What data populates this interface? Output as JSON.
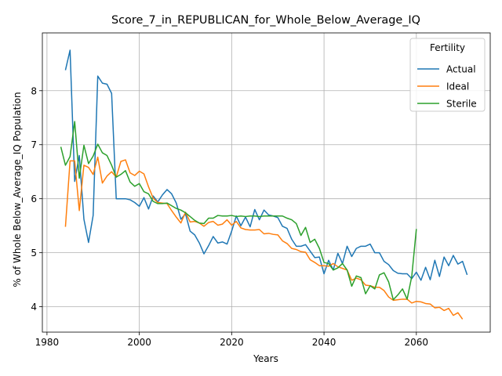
{
  "chart_data": {
    "type": "line",
    "title": "Score_7_in_REPUBLICAN_for_Whole_Below_Average_IQ",
    "xlabel": "Years",
    "ylabel": "% of Whole Below_Average_IQ Population",
    "xlim": [
      1979,
      2076
    ],
    "ylim": [
      3.53,
      9.07
    ],
    "xticks": [
      1980,
      2000,
      2020,
      2040,
      2060
    ],
    "yticks": [
      4,
      5,
      6,
      7,
      8
    ],
    "grid": true,
    "legend": {
      "title": "Fertility",
      "placement": "top-right"
    },
    "series": [
      {
        "name": "Actual",
        "color": "#1f77b4",
        "points": [
          [
            1984,
            8.38
          ],
          [
            1985,
            8.75
          ],
          [
            1986,
            6.32
          ],
          [
            1987,
            6.8
          ],
          [
            1988,
            5.62
          ],
          [
            1989,
            5.19
          ],
          [
            1990,
            5.69
          ],
          [
            1991,
            8.27
          ],
          [
            1992,
            8.14
          ],
          [
            1993,
            8.12
          ],
          [
            1994,
            7.95
          ],
          [
            1995,
            6.0
          ],
          [
            1996,
            6.0
          ],
          [
            1997,
            6.0
          ],
          [
            1998,
            5.98
          ],
          [
            1999,
            5.93
          ],
          [
            2000,
            5.86
          ],
          [
            2001,
            6.02
          ],
          [
            2002,
            5.81
          ],
          [
            2003,
            6.05
          ],
          [
            2004,
            5.94
          ],
          [
            2005,
            6.07
          ],
          [
            2006,
            6.17
          ],
          [
            2007,
            6.09
          ],
          [
            2008,
            5.92
          ],
          [
            2009,
            5.62
          ],
          [
            2010,
            5.72
          ],
          [
            2011,
            5.4
          ],
          [
            2012,
            5.33
          ],
          [
            2013,
            5.18
          ],
          [
            2014,
            4.98
          ],
          [
            2015,
            5.13
          ],
          [
            2016,
            5.3
          ],
          [
            2017,
            5.18
          ],
          [
            2018,
            5.2
          ],
          [
            2019,
            5.16
          ],
          [
            2020,
            5.4
          ],
          [
            2021,
            5.68
          ],
          [
            2022,
            5.5
          ],
          [
            2023,
            5.66
          ],
          [
            2024,
            5.48
          ],
          [
            2025,
            5.8
          ],
          [
            2026,
            5.61
          ],
          [
            2027,
            5.79
          ],
          [
            2028,
            5.7
          ],
          [
            2029,
            5.68
          ],
          [
            2030,
            5.65
          ],
          [
            2031,
            5.49
          ],
          [
            2032,
            5.45
          ],
          [
            2033,
            5.25
          ],
          [
            2034,
            5.12
          ],
          [
            2035,
            5.12
          ],
          [
            2036,
            5.15
          ],
          [
            2037,
            5.03
          ],
          [
            2038,
            4.91
          ],
          [
            2039,
            4.92
          ],
          [
            2040,
            4.61
          ],
          [
            2041,
            4.86
          ],
          [
            2042,
            4.68
          ],
          [
            2043,
            4.99
          ],
          [
            2044,
            4.8
          ],
          [
            2045,
            5.12
          ],
          [
            2046,
            4.93
          ],
          [
            2047,
            5.08
          ],
          [
            2048,
            5.12
          ],
          [
            2049,
            5.12
          ],
          [
            2050,
            5.16
          ],
          [
            2051,
            5.0
          ],
          [
            2052,
            5.0
          ],
          [
            2053,
            4.84
          ],
          [
            2054,
            4.78
          ],
          [
            2055,
            4.67
          ],
          [
            2056,
            4.62
          ],
          [
            2057,
            4.61
          ],
          [
            2058,
            4.61
          ],
          [
            2059,
            4.52
          ],
          [
            2060,
            4.64
          ],
          [
            2061,
            4.49
          ],
          [
            2062,
            4.73
          ],
          [
            2063,
            4.5
          ],
          [
            2064,
            4.86
          ],
          [
            2065,
            4.56
          ],
          [
            2066,
            4.92
          ],
          [
            2067,
            4.76
          ],
          [
            2068,
            4.95
          ],
          [
            2069,
            4.79
          ],
          [
            2070,
            4.84
          ],
          [
            2071,
            4.59
          ]
        ]
      },
      {
        "name": "Ideal",
        "color": "#ff7f0e",
        "points": [
          [
            1984,
            5.48
          ],
          [
            1985,
            6.7
          ],
          [
            1986,
            6.7
          ],
          [
            1987,
            5.78
          ],
          [
            1988,
            6.62
          ],
          [
            1989,
            6.58
          ],
          [
            1990,
            6.45
          ],
          [
            1991,
            6.77
          ],
          [
            1992,
            6.29
          ],
          [
            1993,
            6.42
          ],
          [
            1994,
            6.5
          ],
          [
            1995,
            6.4
          ],
          [
            1996,
            6.69
          ],
          [
            1997,
            6.72
          ],
          [
            1998,
            6.48
          ],
          [
            1999,
            6.43
          ],
          [
            2000,
            6.51
          ],
          [
            2001,
            6.46
          ],
          [
            2002,
            6.22
          ],
          [
            2003,
            6.01
          ],
          [
            2004,
            5.93
          ],
          [
            2005,
            5.92
          ],
          [
            2006,
            5.91
          ],
          [
            2007,
            5.78
          ],
          [
            2008,
            5.66
          ],
          [
            2009,
            5.55
          ],
          [
            2010,
            5.75
          ],
          [
            2011,
            5.57
          ],
          [
            2012,
            5.58
          ],
          [
            2013,
            5.55
          ],
          [
            2014,
            5.49
          ],
          [
            2015,
            5.56
          ],
          [
            2016,
            5.58
          ],
          [
            2017,
            5.51
          ],
          [
            2018,
            5.53
          ],
          [
            2019,
            5.61
          ],
          [
            2020,
            5.51
          ],
          [
            2021,
            5.58
          ],
          [
            2022,
            5.46
          ],
          [
            2023,
            5.43
          ],
          [
            2024,
            5.42
          ],
          [
            2025,
            5.42
          ],
          [
            2026,
            5.43
          ],
          [
            2027,
            5.35
          ],
          [
            2028,
            5.36
          ],
          [
            2029,
            5.34
          ],
          [
            2030,
            5.33
          ],
          [
            2031,
            5.22
          ],
          [
            2032,
            5.17
          ],
          [
            2033,
            5.08
          ],
          [
            2034,
            5.06
          ],
          [
            2035,
            5.02
          ],
          [
            2036,
            5.01
          ],
          [
            2037,
            4.87
          ],
          [
            2038,
            4.82
          ],
          [
            2039,
            4.76
          ],
          [
            2040,
            4.76
          ],
          [
            2041,
            4.75
          ],
          [
            2042,
            4.8
          ],
          [
            2043,
            4.74
          ],
          [
            2044,
            4.71
          ],
          [
            2045,
            4.68
          ],
          [
            2046,
            4.49
          ],
          [
            2047,
            4.53
          ],
          [
            2048,
            4.5
          ],
          [
            2049,
            4.4
          ],
          [
            2050,
            4.39
          ],
          [
            2051,
            4.36
          ],
          [
            2052,
            4.36
          ],
          [
            2053,
            4.3
          ],
          [
            2054,
            4.18
          ],
          [
            2055,
            4.12
          ],
          [
            2056,
            4.13
          ],
          [
            2057,
            4.14
          ],
          [
            2058,
            4.14
          ],
          [
            2059,
            4.07
          ],
          [
            2060,
            4.1
          ],
          [
            2061,
            4.09
          ],
          [
            2062,
            4.06
          ],
          [
            2063,
            4.05
          ],
          [
            2064,
            3.98
          ],
          [
            2065,
            3.99
          ],
          [
            2066,
            3.93
          ],
          [
            2067,
            3.97
          ],
          [
            2068,
            3.84
          ],
          [
            2069,
            3.89
          ],
          [
            2070,
            3.77
          ]
        ]
      },
      {
        "name": "Sterile",
        "color": "#2ca02c",
        "points": [
          [
            1983,
            6.96
          ],
          [
            1984,
            6.62
          ],
          [
            1985,
            6.78
          ],
          [
            1986,
            7.43
          ],
          [
            1987,
            6.38
          ],
          [
            1988,
            6.99
          ],
          [
            1989,
            6.65
          ],
          [
            1990,
            6.79
          ],
          [
            1991,
            7.01
          ],
          [
            1992,
            6.85
          ],
          [
            1993,
            6.8
          ],
          [
            1994,
            6.62
          ],
          [
            1995,
            6.4
          ],
          [
            1996,
            6.45
          ],
          [
            1997,
            6.52
          ],
          [
            1998,
            6.31
          ],
          [
            1999,
            6.23
          ],
          [
            2000,
            6.28
          ],
          [
            2001,
            6.13
          ],
          [
            2002,
            6.09
          ],
          [
            2003,
            5.95
          ],
          [
            2004,
            5.91
          ],
          [
            2005,
            5.91
          ],
          [
            2006,
            5.92
          ],
          [
            2007,
            5.87
          ],
          [
            2008,
            5.82
          ],
          [
            2009,
            5.79
          ],
          [
            2010,
            5.74
          ],
          [
            2011,
            5.67
          ],
          [
            2012,
            5.6
          ],
          [
            2013,
            5.55
          ],
          [
            2014,
            5.54
          ],
          [
            2015,
            5.64
          ],
          [
            2016,
            5.64
          ],
          [
            2017,
            5.69
          ],
          [
            2018,
            5.68
          ],
          [
            2019,
            5.68
          ],
          [
            2020,
            5.69
          ],
          [
            2021,
            5.67
          ],
          [
            2022,
            5.68
          ],
          [
            2023,
            5.67
          ],
          [
            2024,
            5.68
          ],
          [
            2025,
            5.68
          ],
          [
            2026,
            5.67
          ],
          [
            2027,
            5.68
          ],
          [
            2028,
            5.68
          ],
          [
            2029,
            5.68
          ],
          [
            2030,
            5.68
          ],
          [
            2031,
            5.68
          ],
          [
            2032,
            5.64
          ],
          [
            2033,
            5.61
          ],
          [
            2034,
            5.54
          ],
          [
            2035,
            5.32
          ],
          [
            2036,
            5.47
          ],
          [
            2037,
            5.19
          ],
          [
            2038,
            5.25
          ],
          [
            2039,
            5.08
          ],
          [
            2040,
            4.82
          ],
          [
            2041,
            4.8
          ],
          [
            2042,
            4.68
          ],
          [
            2043,
            4.72
          ],
          [
            2044,
            4.8
          ],
          [
            2045,
            4.68
          ],
          [
            2046,
            4.38
          ],
          [
            2047,
            4.57
          ],
          [
            2048,
            4.54
          ],
          [
            2049,
            4.24
          ],
          [
            2050,
            4.39
          ],
          [
            2051,
            4.33
          ],
          [
            2052,
            4.59
          ],
          [
            2053,
            4.63
          ],
          [
            2054,
            4.46
          ],
          [
            2055,
            4.13
          ],
          [
            2056,
            4.22
          ],
          [
            2057,
            4.33
          ],
          [
            2058,
            4.14
          ],
          [
            2059,
            4.56
          ],
          [
            2060,
            5.44
          ]
        ]
      }
    ]
  }
}
